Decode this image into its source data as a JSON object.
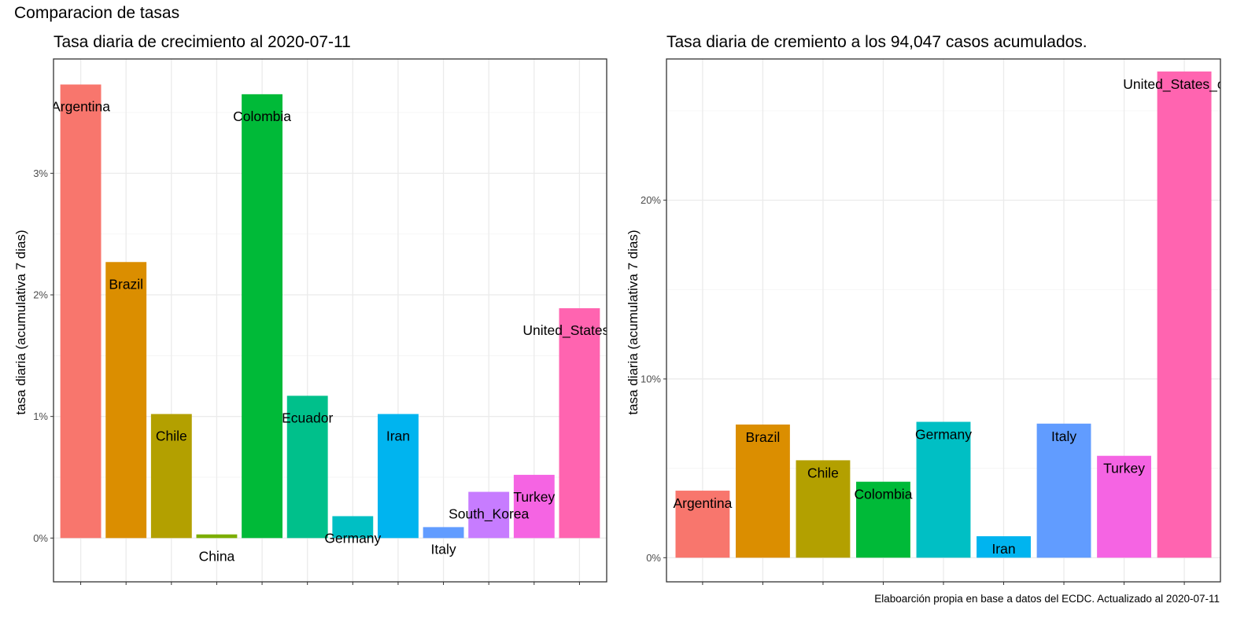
{
  "figure": {
    "title": "Comparacion de tasas",
    "caption": "Elaboarción propia en base a datos del ECDC.  Actualizado al  2020-07-11"
  },
  "colors": {
    "Argentina": "#F8766D",
    "Brazil": "#DB8E00",
    "Chile": "#B3A000",
    "China": "#7CAE00",
    "Colombia": "#00BA38",
    "Ecuador": "#00C08B",
    "Germany": "#00BFC4",
    "Iran": "#00B4EF",
    "Italy": "#619CFF",
    "South_Korea": "#C77CFF",
    "Turkey": "#F564E3",
    "United_States_of_America": "#FF64B0"
  },
  "chart_data": [
    {
      "type": "bar",
      "title": "Tasa diaria de crecimiento al 2020-07-11",
      "xlabel": "",
      "ylabel": "tasa diaria (acumulativa 7 dias)",
      "ylim": [
        -0.36,
        3.94
      ],
      "yticks": [
        0,
        1,
        2,
        3
      ],
      "ytick_labels": [
        "0%",
        "1%",
        "2%",
        "3%"
      ],
      "categories": [
        "Argentina",
        "Brazil",
        "Chile",
        "China",
        "Colombia",
        "Ecuador",
        "Germany",
        "Iran",
        "Italy",
        "South_Korea",
        "Turkey",
        "United_States_of_America"
      ],
      "labels": [
        "Argentina",
        "Brazil",
        "Chile",
        "China",
        "Colombia",
        "Ecuador",
        "Germany",
        "Iran",
        "Italy",
        "South_Korea",
        "Turkey",
        "United_States_of_"
      ],
      "values": [
        3.73,
        2.27,
        1.02,
        0.03,
        3.65,
        1.17,
        0.18,
        1.02,
        0.09,
        0.38,
        0.52,
        1.89
      ],
      "grid": true
    },
    {
      "type": "bar",
      "title": "Tasa diaria de cremiento a los 94,047 casos acumulados.",
      "xlabel": "",
      "ylabel": "tasa diaria (acumulativa 7 dias)",
      "ylim": [
        -1.35,
        27.9
      ],
      "yticks": [
        0,
        10,
        20
      ],
      "ytick_labels": [
        "0%",
        "10%",
        "20%"
      ],
      "categories": [
        "Argentina",
        "Brazil",
        "Chile",
        "Colombia",
        "Germany",
        "Iran",
        "Italy",
        "Turkey",
        "United_States_of_America"
      ],
      "labels": [
        "Argentina",
        "Brazil",
        "Chile",
        "Colombia",
        "Germany",
        "Iran",
        "Italy",
        "Turkey",
        "United_States_of_A"
      ],
      "values": [
        3.75,
        7.45,
        5.45,
        4.25,
        7.6,
        1.2,
        7.5,
        5.7,
        27.2
      ],
      "grid": true
    }
  ]
}
